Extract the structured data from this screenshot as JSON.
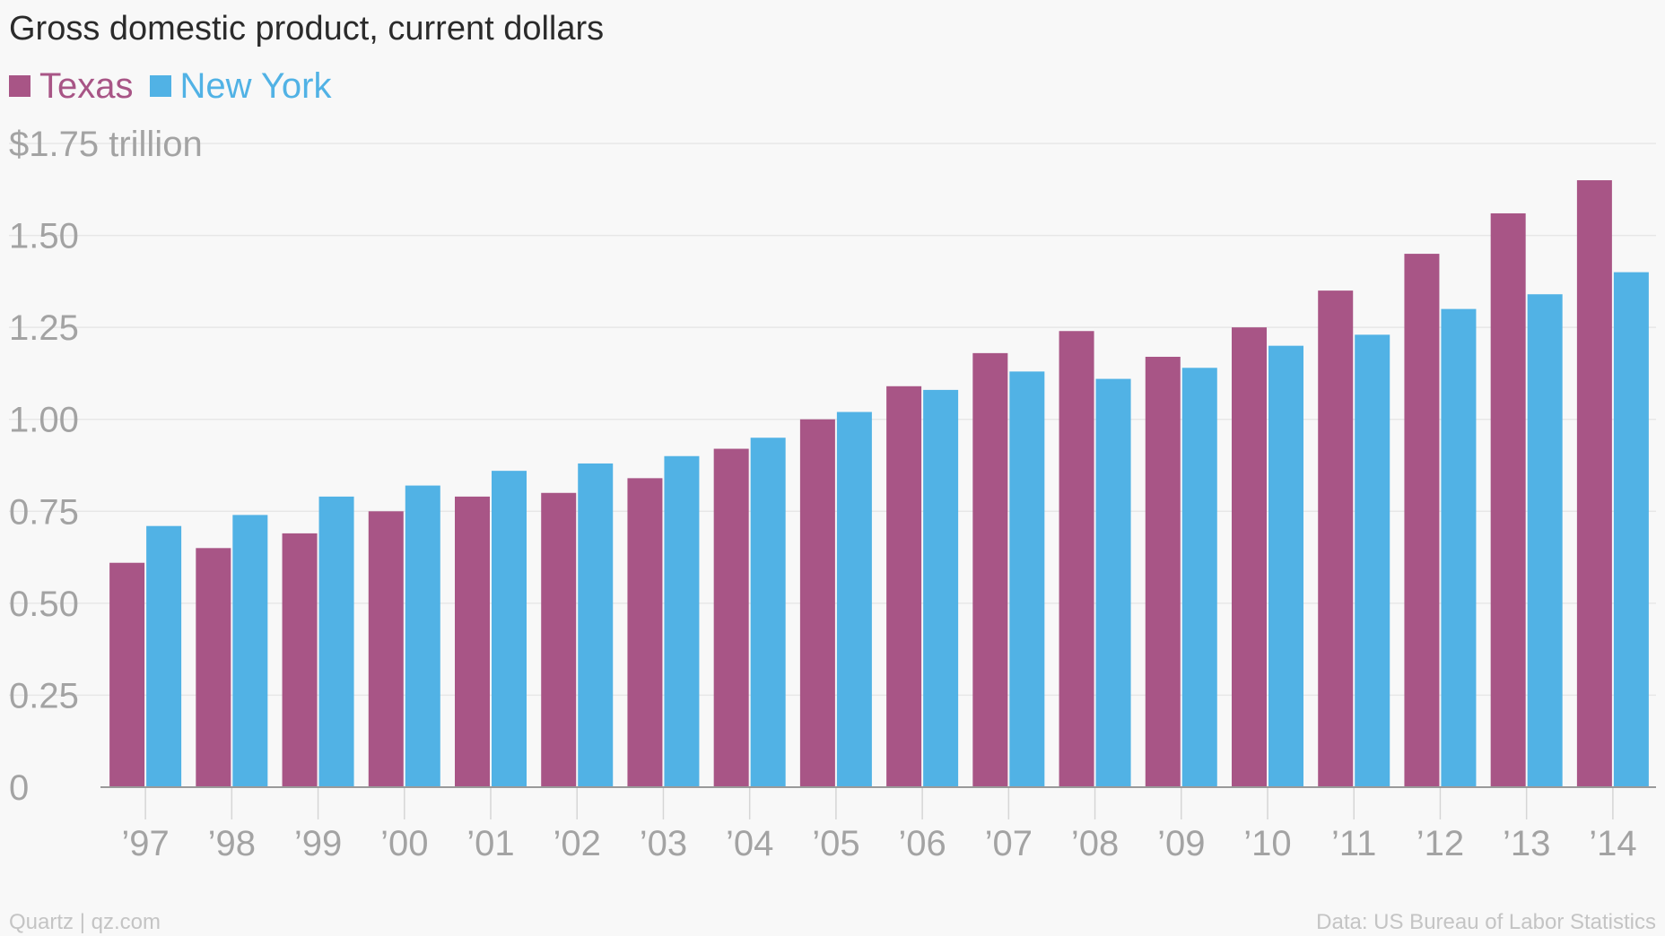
{
  "chart_data": {
    "type": "bar",
    "title": "Gross domestic product, current dollars",
    "categories": [
      "’97",
      "’98",
      "’99",
      "’00",
      "’01",
      "’02",
      "’03",
      "’04",
      "’05",
      "’06",
      "’07",
      "’08",
      "’09",
      "’10",
      "’11",
      "’12",
      "’13",
      "’14"
    ],
    "series": [
      {
        "name": "Texas",
        "color": "#a85586",
        "values": [
          0.61,
          0.65,
          0.69,
          0.75,
          0.79,
          0.8,
          0.84,
          0.92,
          1.0,
          1.09,
          1.18,
          1.24,
          1.17,
          1.25,
          1.35,
          1.45,
          1.56,
          1.65
        ]
      },
      {
        "name": "New York",
        "color": "#51b2e5",
        "values": [
          0.71,
          0.74,
          0.79,
          0.82,
          0.86,
          0.88,
          0.9,
          0.95,
          1.02,
          1.08,
          1.13,
          1.11,
          1.14,
          1.2,
          1.23,
          1.3,
          1.34,
          1.4
        ]
      }
    ],
    "ylim": [
      0,
      1.75
    ],
    "yticks": [
      0,
      0.25,
      0.5,
      0.75,
      1.0,
      1.25,
      1.5,
      1.75
    ],
    "ytick_labels": [
      "0",
      "0.25",
      "0.50",
      "0.75",
      "1.00",
      "1.25",
      "1.50",
      "$1.75 trillion"
    ],
    "grid": true,
    "legend_position": "top-left"
  },
  "footer": {
    "credit": "Quartz | qz.com",
    "source": "Data: US Bureau of Labor Statistics"
  }
}
